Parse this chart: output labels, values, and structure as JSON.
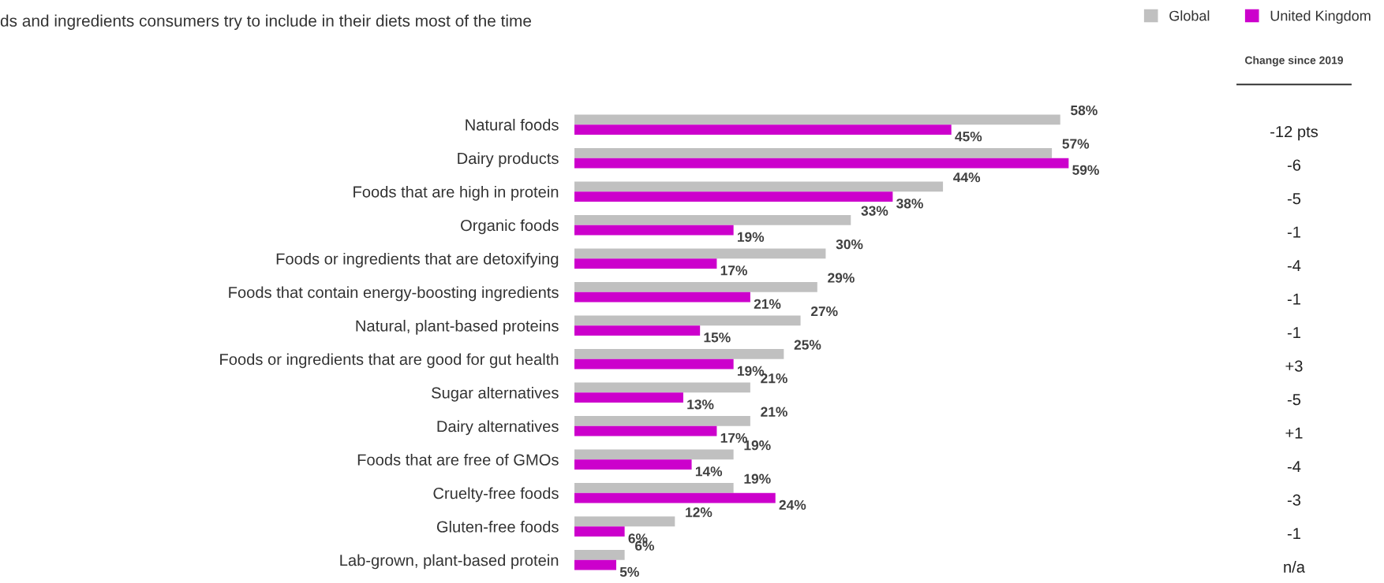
{
  "chart_data": {
    "type": "bar",
    "orientation": "horizontal",
    "title": "ds and ingredients consumers try to include in their diets most of the time",
    "categories": [
      "Natural foods",
      "Dairy products",
      "Foods that are high in protein",
      "Organic foods",
      "Foods or ingredients that are detoxifying",
      "Foods that contain energy-boosting ingredients",
      "Natural, plant-based proteins",
      "Foods or ingredients that are good for gut health",
      "Sugar alternatives",
      "Dairy alternatives",
      "Foods that are free of GMOs",
      "Cruelty-free foods",
      "Gluten-free foods",
      "Lab-grown, plant-based protein"
    ],
    "series": [
      {
        "name": "Global",
        "color": "#c0c0c0",
        "values": [
          58,
          57,
          44,
          33,
          30,
          29,
          27,
          25,
          21,
          21,
          19,
          19,
          12,
          6
        ],
        "value_labels": [
          "58%",
          "57%",
          "44%",
          "33%",
          "30%",
          "29%",
          "27%",
          "25%",
          "21%",
          "21%",
          "19%",
          "19%",
          "12%",
          "6%"
        ]
      },
      {
        "name": "United Kingdom",
        "color": "#cc00cc",
        "values": [
          45,
          59,
          38,
          19,
          17,
          21,
          15,
          19,
          13,
          17,
          14,
          24,
          6,
          5
        ],
        "value_labels": [
          "45%",
          "59%",
          "38%",
          "19%",
          "17%",
          "21%",
          "15%",
          "19%",
          "13%",
          "17%",
          "14%",
          "24%",
          "6%",
          "5%"
        ]
      }
    ],
    "tick_labels": "y",
    "legend": "top right",
    "grid": false,
    "annotations": [
      "Change since 2019",
      "-12 pts",
      "-6",
      "-5",
      "-1",
      "-4",
      "-1",
      "-1",
      "+3",
      "-5",
      "+1",
      "-4",
      "-3",
      "-1",
      "n/a"
    ]
  }
}
